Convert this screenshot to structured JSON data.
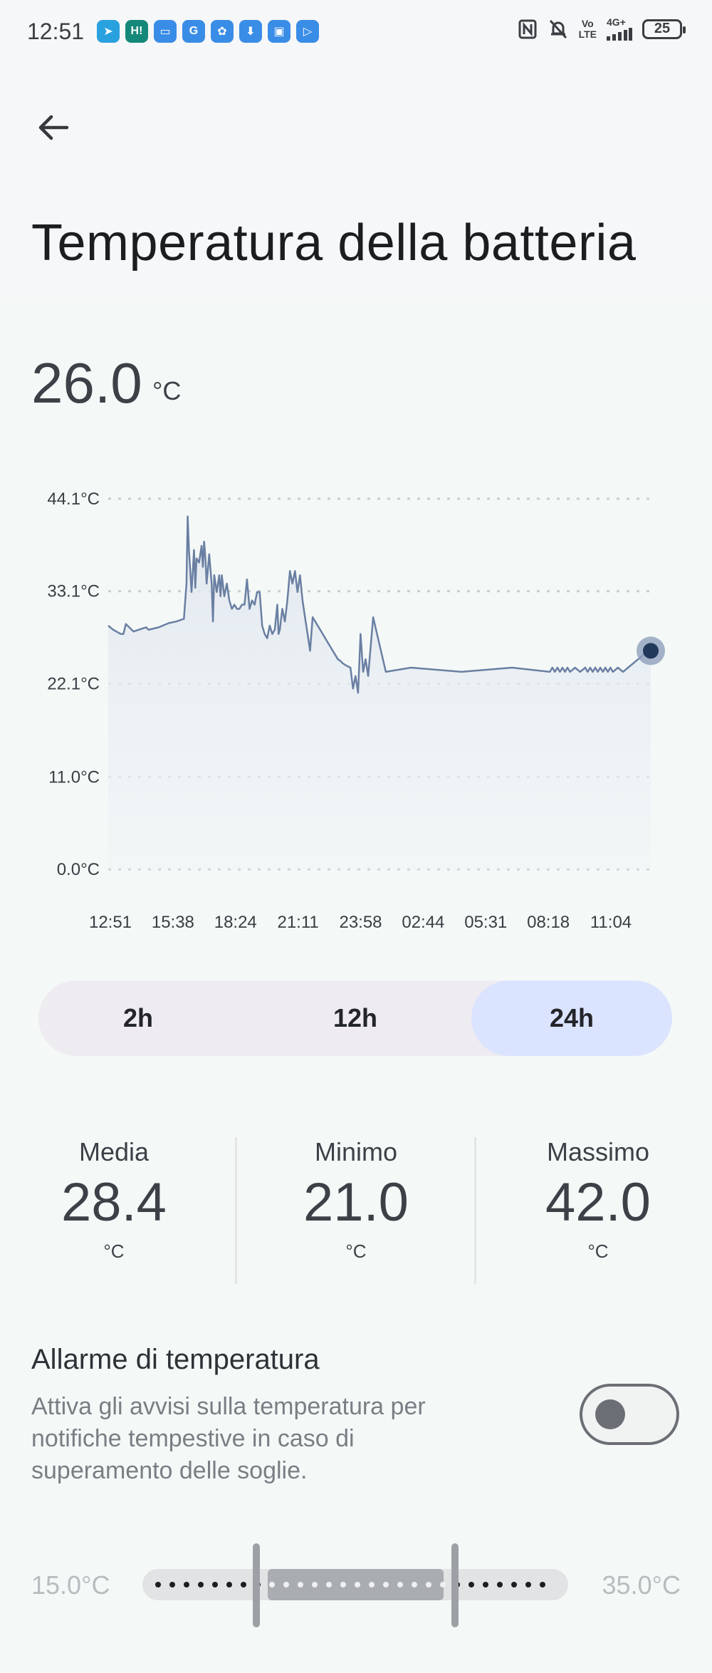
{
  "status_bar": {
    "time": "12:51",
    "app_icons": [
      {
        "name": "telegram-icon",
        "glyph": "➤",
        "color": "#2aa1df"
      },
      {
        "name": "hi-app-icon",
        "glyph": "H!",
        "color": "#14897a"
      },
      {
        "name": "wallet-icon",
        "glyph": "▭",
        "color": "#3a8de6"
      },
      {
        "name": "google-icon",
        "glyph": "G",
        "color": "#3a8de6"
      },
      {
        "name": "settings-app-icon",
        "glyph": "✿",
        "color": "#3a8de6"
      },
      {
        "name": "download-app-icon",
        "glyph": "⬇",
        "color": "#3a8de6"
      },
      {
        "name": "package-app-icon",
        "glyph": "▣",
        "color": "#3a8de6"
      },
      {
        "name": "play-app-icon",
        "glyph": "▷",
        "color": "#3a8de6"
      }
    ],
    "volte_top": "Vo",
    "volte_bottom": "LTE",
    "network_label": "4G+",
    "battery_level": "25"
  },
  "header": {
    "title": "Temperatura della batteria"
  },
  "current": {
    "value": "26.0",
    "unit": "°C"
  },
  "chart_data": {
    "type": "area",
    "y_tick_labels": [
      "44.1°C",
      "33.1°C",
      "22.1°C",
      "11.0°C",
      "0.0°C"
    ],
    "y_ticks": [
      44.1,
      33.1,
      22.1,
      11.0,
      0.0
    ],
    "ylim": [
      0,
      44.1
    ],
    "x_tick_labels": [
      "12:51",
      "15:38",
      "18:24",
      "21:11",
      "23:58",
      "02:44",
      "05:31",
      "08:18",
      "11:04"
    ],
    "grid": "dashed horizontal",
    "line_color": "#6a7fa2",
    "series": [
      {
        "x_hours": [
          0,
          0.2,
          0.5,
          0.6,
          0.7,
          1.0,
          1.2,
          1.5,
          1.6,
          2.0,
          2.4,
          2.7,
          3.0,
          3.1,
          3.15,
          3.2,
          3.3,
          3.4,
          3.45,
          3.5,
          3.6,
          3.7,
          3.75,
          3.8,
          3.85,
          3.9,
          4.0,
          4.1,
          4.15,
          4.2,
          4.3,
          4.4,
          4.45,
          4.5,
          4.6,
          4.7,
          4.8,
          4.9,
          5.0,
          5.1,
          5.2,
          5.3,
          5.4,
          5.5,
          5.6,
          5.7,
          5.8,
          5.9,
          6.0,
          6.1,
          6.2,
          6.3,
          6.4,
          6.5,
          6.6,
          6.7,
          6.75,
          6.8,
          6.9,
          7.0,
          7.1,
          7.2,
          7.3,
          7.4,
          7.5,
          7.6,
          7.7,
          7.8,
          7.9,
          8.0,
          8.1,
          8.3,
          8.5,
          8.7,
          8.8,
          8.9,
          9.0,
          9.1,
          9.2,
          9.3,
          9.4,
          9.6,
          9.7,
          9.8,
          9.9,
          10.0,
          10.1,
          10.2,
          10.3,
          10.5,
          11.0,
          12.0,
          14.0,
          16.0,
          17.5,
          17.6,
          17.7,
          17.8,
          17.9,
          18.0,
          18.1,
          18.2,
          18.3,
          18.5,
          18.7,
          18.9,
          19.0,
          19.1,
          19.2,
          19.3,
          19.4,
          19.5,
          19.6,
          19.7,
          19.8,
          19.9,
          20.0,
          20.2,
          20.4,
          20.6,
          20.8,
          21.0,
          21.2,
          21.4,
          21.5
        ],
        "values": [
          29.0,
          28.5,
          28.0,
          28.0,
          29.2,
          28.3,
          28.5,
          28.8,
          28.5,
          28.8,
          29.3,
          29.5,
          29.8,
          34.0,
          42.0,
          38.0,
          33.0,
          38.0,
          33.5,
          37.0,
          36.5,
          38.5,
          36.0,
          39.0,
          37.0,
          34.0,
          37.5,
          34.0,
          29.5,
          35.0,
          33.0,
          35.0,
          32.5,
          35.0,
          32.5,
          34.0,
          32.0,
          31.0,
          31.5,
          31.0,
          31.0,
          31.5,
          31.5,
          34.5,
          31.0,
          32.0,
          31.5,
          33.0,
          33.0,
          29.0,
          28.0,
          27.5,
          29.0,
          28.0,
          28.5,
          31.5,
          28.0,
          28.5,
          31.0,
          29.5,
          32.0,
          35.5,
          34.0,
          35.5,
          33.0,
          35.0,
          32.0,
          30.0,
          28.0,
          26.0,
          30.0,
          29.0,
          28.0,
          27.0,
          26.5,
          26.0,
          25.5,
          25.0,
          24.8,
          24.5,
          24.3,
          24.0,
          21.5,
          23.0,
          21.0,
          28.0,
          23.5,
          25.0,
          23.0,
          30.0,
          23.5,
          24.0,
          23.5,
          24.0,
          23.5,
          24.0,
          23.5,
          24.0,
          23.5,
          24.0,
          23.5,
          24.0,
          23.5,
          24.0,
          23.5,
          24.0,
          23.5,
          24.0,
          23.5,
          24.0,
          23.5,
          24.0,
          23.5,
          24.0,
          23.5,
          24.0,
          23.5,
          24.0,
          23.5,
          24.0,
          24.5,
          25.0,
          25.5,
          26.0,
          26.0
        ],
        "x_range_hours": [
          0,
          21.5
        ]
      }
    ],
    "current_marker": 26.0
  },
  "ranges": {
    "options": [
      "2h",
      "12h",
      "24h"
    ],
    "selected": "24h"
  },
  "stats": {
    "avg_label": "Media",
    "avg_value": "28.4",
    "avg_unit": "°C",
    "min_label": "Minimo",
    "min_value": "21.0",
    "min_unit": "°C",
    "max_label": "Massimo",
    "max_value": "42.0",
    "max_unit": "°C"
  },
  "alarm": {
    "title": "Allarme di temperatura",
    "description": "Attiva gli avvisi sulla temperatura per notifiche tempestive in caso di superamento delle soglie.",
    "enabled": false,
    "range_min_label": "15.0°C",
    "range_max_label": "35.0°C",
    "range_low": 20,
    "range_high": 30
  }
}
